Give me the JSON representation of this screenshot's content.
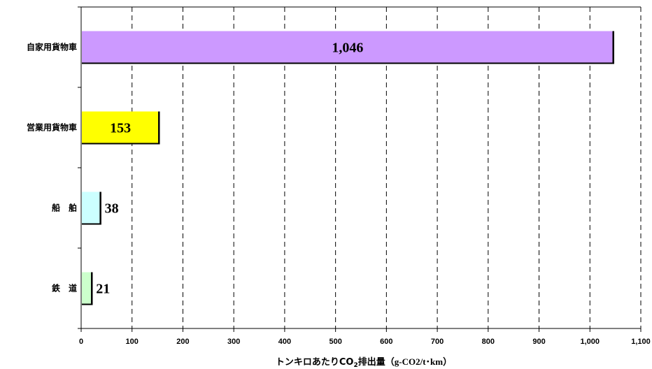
{
  "chart_data": {
    "type": "bar",
    "orientation": "horizontal",
    "categories": [
      "自家用貨物車",
      "営業用貨物車",
      "船　舶",
      "鉄　道"
    ],
    "values": [
      1046,
      153,
      38,
      21
    ],
    "value_labels": [
      "1,046",
      "153",
      "38",
      "21"
    ],
    "colors": [
      "#cc99ff",
      "#ffff00",
      "#ccffff",
      "#ccffcc"
    ],
    "xlabel": "トンキロあたりCO2排出量（g-CO2/t･km）",
    "xlabel_parts": {
      "main": "トンキロあたりCO",
      "sub": "2",
      "rest": "排出量",
      "unit": "（g-CO2/t･km）"
    },
    "xlim": [
      0,
      1100
    ],
    "xticks": [
      0,
      100,
      200,
      300,
      400,
      500,
      600,
      700,
      800,
      900,
      1000,
      1100
    ],
    "xtick_labels": [
      "0",
      "100",
      "200",
      "300",
      "400",
      "500",
      "600",
      "700",
      "800",
      "900",
      "1,000",
      "1,100"
    ],
    "grid": "vertical-dashed",
    "legend": "none"
  }
}
